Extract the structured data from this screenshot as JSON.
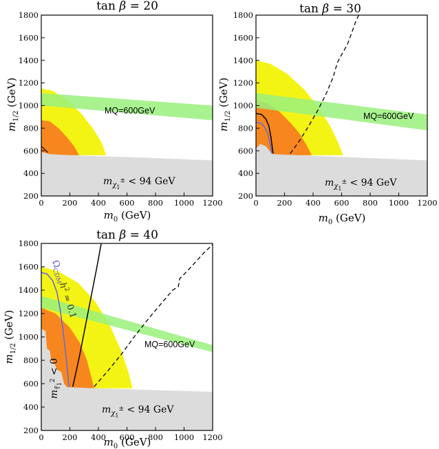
{
  "chart_data": [
    {
      "type": "area",
      "title": "tan β = 20",
      "title_tex": {
        "main": "tan",
        "beta": "β",
        "rest": "= 20"
      },
      "xlabel": "m0 (GeV)",
      "ylabel": "m1/2 (GeV)",
      "xlim": [
        0,
        1200
      ],
      "ylim": [
        200,
        1800
      ],
      "xticks": [
        0,
        200,
        400,
        600,
        800,
        1000,
        1200
      ],
      "yticks": [
        200,
        400,
        600,
        800,
        1000,
        1200,
        1400,
        1600,
        1800
      ],
      "labels": {
        "mq": "MQ=600GeV",
        "chargino": "m",
        "chargino_sub": "χ",
        "chargino_sup": "±",
        "chargino_sub2": "1",
        "chargino_rest": " < 94 GeV"
      },
      "regions": {
        "yellow": [
          [
            0,
            1150
          ],
          [
            80,
            1130
          ],
          [
            180,
            1050
          ],
          [
            280,
            930
          ],
          [
            360,
            800
          ],
          [
            420,
            680
          ],
          [
            455,
            560
          ],
          [
            0,
            560
          ]
        ],
        "orange": [
          [
            0,
            870
          ],
          [
            60,
            860
          ],
          [
            120,
            800
          ],
          [
            180,
            720
          ],
          [
            230,
            640
          ],
          [
            265,
            560
          ],
          [
            0,
            560
          ]
        ],
        "green_band": {
          "x": [
            0,
            1200
          ],
          "lower": [
            1000,
            870
          ],
          "upper": [
            1110,
            1000
          ]
        },
        "excluded": [
          [
            0,
            200
          ],
          [
            0,
            590
          ],
          [
            60,
            570
          ],
          [
            300,
            555
          ],
          [
            700,
            540
          ],
          [
            1200,
            515
          ],
          [
            1200,
            200
          ]
        ],
        "small_curve": [
          [
            0,
            640
          ],
          [
            25,
            610
          ],
          [
            45,
            585
          ]
        ]
      },
      "colors": {
        "yellow": "#f4f414",
        "orange": "#f7861e",
        "green": "#9af07c",
        "grey": "#dcdcdc"
      }
    },
    {
      "type": "area",
      "title": "tan β = 30",
      "title_tex": {
        "main": "tan",
        "beta": "β",
        "rest": "= 30"
      },
      "xlabel": "m0 (GeV)",
      "ylabel": "m1/2 (GeV)",
      "xlim": [
        0,
        1200
      ],
      "ylim": [
        200,
        1800
      ],
      "xticks": [
        0,
        200,
        400,
        600,
        800,
        1000,
        1200
      ],
      "yticks": [
        200,
        400,
        600,
        800,
        1000,
        1200,
        1400,
        1600,
        1800
      ],
      "labels": {
        "mq": "MQ=600GeV",
        "chargino": "m",
        "chargino_sub": "χ",
        "chargino_sup": "±",
        "chargino_sub2": "1",
        "chargino_rest": " < 94 GeV"
      },
      "regions": {
        "yellow": [
          [
            0,
            1400
          ],
          [
            100,
            1370
          ],
          [
            220,
            1280
          ],
          [
            340,
            1140
          ],
          [
            440,
            980
          ],
          [
            520,
            820
          ],
          [
            580,
            660
          ],
          [
            610,
            560
          ],
          [
            0,
            560
          ]
        ],
        "orange": [
          [
            0,
            1050
          ],
          [
            80,
            1020
          ],
          [
            160,
            950
          ],
          [
            240,
            850
          ],
          [
            300,
            760
          ],
          [
            350,
            660
          ],
          [
            390,
            560
          ],
          [
            0,
            560
          ]
        ],
        "green_band": {
          "x": [
            0,
            1200
          ],
          "lower": [
            980,
            780
          ],
          "upper": [
            1110,
            920
          ]
        },
        "excluded": [
          [
            0,
            200
          ],
          [
            0,
            620
          ],
          [
            30,
            660
          ],
          [
            70,
            640
          ],
          [
            100,
            590
          ],
          [
            120,
            570
          ],
          [
            300,
            560
          ],
          [
            700,
            540
          ],
          [
            1200,
            515
          ],
          [
            1200,
            200
          ]
        ],
        "black_curve": [
          [
            0,
            930
          ],
          [
            40,
            920
          ],
          [
            70,
            880
          ],
          [
            90,
            820
          ],
          [
            105,
            720
          ],
          [
            115,
            620
          ],
          [
            120,
            575
          ]
        ],
        "blue_curve": [
          [
            0,
            850
          ],
          [
            35,
            845
          ],
          [
            60,
            810
          ],
          [
            80,
            760
          ],
          [
            95,
            690
          ],
          [
            105,
            620
          ],
          [
            110,
            575
          ]
        ],
        "dashed_curve": [
          [
            240,
            575
          ],
          [
            300,
            680
          ],
          [
            360,
            800
          ],
          [
            430,
            950
          ],
          [
            490,
            1100
          ],
          [
            540,
            1250
          ],
          [
            570,
            1380
          ],
          [
            600,
            1450
          ],
          [
            640,
            1540
          ],
          [
            670,
            1640
          ],
          [
            700,
            1750
          ],
          [
            720,
            1800
          ]
        ]
      },
      "colors": {
        "yellow": "#f4f414",
        "orange": "#f7861e",
        "green": "#9af07c",
        "grey": "#dcdcdc"
      }
    },
    {
      "type": "area",
      "title": "tan β = 40",
      "title_tex": {
        "main": "tan",
        "beta": "β",
        "rest": "= 40"
      },
      "xlabel": "m0 (GeV)",
      "ylabel": "m1/2 (GeV)",
      "xlim": [
        0,
        1200
      ],
      "ylim": [
        200,
        1800
      ],
      "xticks": [
        0,
        200,
        400,
        600,
        800,
        1000,
        1200
      ],
      "yticks": [
        200,
        400,
        600,
        800,
        1000,
        1200,
        1400,
        1600,
        1800
      ],
      "labels": {
        "mq": "MQ=600GeV",
        "chargino": "m",
        "chargino_sub": "χ",
        "chargino_sup": "±",
        "chargino_sub2": "1",
        "chargino_rest": " < 94 GeV",
        "stau": "m",
        "stau_sub": "τ̃",
        "stau_sub2": "1",
        "stau_sup": "2",
        "stau_rest": " < 0",
        "omega": "Ω",
        "omega_sub": "CDM",
        "omega_rest": "h",
        "omega_sup": "2",
        "omega_end": " ≃ 0.1"
      },
      "regions": {
        "yellow": [
          [
            0,
            1600
          ],
          [
            120,
            1560
          ],
          [
            260,
            1460
          ],
          [
            380,
            1300
          ],
          [
            480,
            1100
          ],
          [
            560,
            880
          ],
          [
            610,
            700
          ],
          [
            640,
            560
          ],
          [
            0,
            560
          ]
        ],
        "orange": [
          [
            0,
            1250
          ],
          [
            100,
            1200
          ],
          [
            200,
            1080
          ],
          [
            270,
            950
          ],
          [
            320,
            800
          ],
          [
            350,
            660
          ],
          [
            370,
            560
          ],
          [
            0,
            560
          ]
        ],
        "green_band": {
          "x": [
            0,
            1200
          ],
          "lower": [
            1250,
            870
          ],
          "upper": [
            1350,
            930
          ]
        },
        "excluded": [
          [
            0,
            200
          ],
          [
            0,
            1070
          ],
          [
            30,
            1050
          ],
          [
            40,
            900
          ],
          [
            60,
            880
          ],
          [
            70,
            800
          ],
          [
            90,
            780
          ],
          [
            110,
            720
          ],
          [
            140,
            700
          ],
          [
            160,
            600
          ],
          [
            180,
            570
          ],
          [
            400,
            560
          ],
          [
            800,
            545
          ],
          [
            1200,
            530
          ],
          [
            1200,
            200
          ]
        ],
        "black_curve": [
          [
            220,
            575
          ],
          [
            240,
            680
          ],
          [
            270,
            850
          ],
          [
            310,
            1100
          ],
          [
            350,
            1350
          ],
          [
            390,
            1600
          ],
          [
            420,
            1800
          ]
        ],
        "blue_curve": [
          [
            0,
            1550
          ],
          [
            40,
            1540
          ],
          [
            80,
            1480
          ],
          [
            110,
            1380
          ],
          [
            130,
            1250
          ],
          [
            150,
            1080
          ],
          [
            165,
            920
          ],
          [
            180,
            760
          ],
          [
            190,
            620
          ],
          [
            195,
            575
          ]
        ],
        "dashed_curve": [
          [
            370,
            575
          ],
          [
            460,
            700
          ],
          [
            560,
            850
          ],
          [
            650,
            1000
          ],
          [
            760,
            1170
          ],
          [
            850,
            1300
          ],
          [
            920,
            1400
          ],
          [
            960,
            1430
          ],
          [
            970,
            1500
          ],
          [
            1020,
            1560
          ],
          [
            1080,
            1640
          ],
          [
            1140,
            1720
          ],
          [
            1200,
            1790
          ]
        ]
      },
      "colors": {
        "yellow": "#f4f414",
        "orange": "#f7861e",
        "green": "#9af07c",
        "grey": "#dcdcdc"
      }
    }
  ]
}
